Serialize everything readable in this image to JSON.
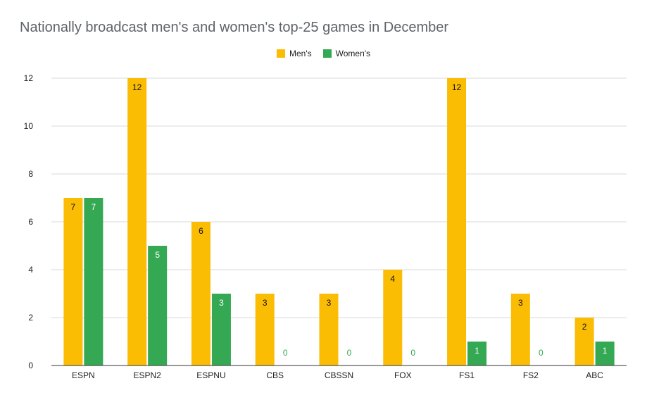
{
  "chart_data": {
    "type": "bar",
    "title": "Nationally broadcast men's and women's top-25 games in December",
    "categories": [
      "ESPN",
      "ESPN2",
      "ESPNU",
      "CBS",
      "CBSSN",
      "FOX",
      "FS1",
      "FS2",
      "ABC"
    ],
    "series": [
      {
        "name": "Men's",
        "color": "#fbbc04",
        "values": [
          7,
          12,
          6,
          3,
          3,
          4,
          12,
          3,
          2
        ]
      },
      {
        "name": "Women's",
        "color": "#34a853",
        "values": [
          7,
          5,
          3,
          0,
          0,
          0,
          1,
          0,
          1
        ]
      }
    ],
    "yticks": [
      "0",
      "2",
      "4",
      "6",
      "8",
      "10",
      "12"
    ],
    "ylim": [
      0,
      12
    ],
    "grid": true,
    "legend_position": "top-center",
    "xlabel": "",
    "ylabel": ""
  }
}
